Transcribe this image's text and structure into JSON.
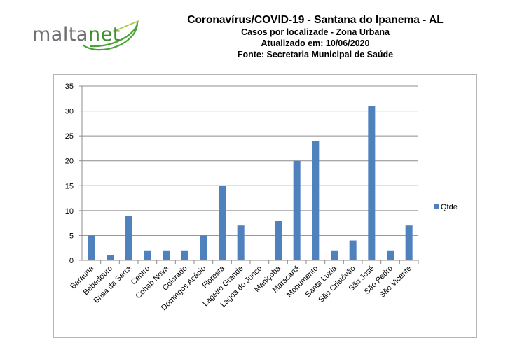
{
  "logo": {
    "text_a": "malta",
    "text_b": "net"
  },
  "header": {
    "title": "Coronavírus/COVID-19 - Santana do Ipanema - AL",
    "subtitle": "Casos por localizade - Zona Urbana",
    "updated": "Atualizado em: 10/06/2020",
    "source": "Fonte: Secretaria Municipal de Saúde"
  },
  "colors": {
    "bar": "#4f81bd",
    "grid": "#8c8c8c",
    "logo_gray": "#6d6e71",
    "logo_green": "#3f8f2f"
  },
  "chart_data": {
    "type": "bar",
    "categories": [
      "Baraúna",
      "Bebedouro",
      "Brisa da Serra",
      "Centro",
      "Cohab Nova",
      "Colorado",
      "Domingos Acácio",
      "Floresta",
      "Lageiro Grande",
      "Lagoa do Junco",
      "Maniçoba",
      "Maracanã",
      "Monumento",
      "Santa Luzia",
      "São Cristóvão",
      "São José",
      "São Pedro",
      "São Vicente"
    ],
    "series": [
      {
        "name": "Qtde",
        "values": [
          5,
          1,
          9,
          2,
          2,
          2,
          5,
          15,
          7,
          0,
          8,
          20,
          24,
          2,
          4,
          31,
          2,
          7
        ]
      }
    ],
    "yticks": [
      "0",
      "5",
      "10",
      "15",
      "20",
      "25",
      "30",
      "35"
    ],
    "ylim": [
      0,
      35
    ],
    "grid": true,
    "legend_position": "right"
  }
}
